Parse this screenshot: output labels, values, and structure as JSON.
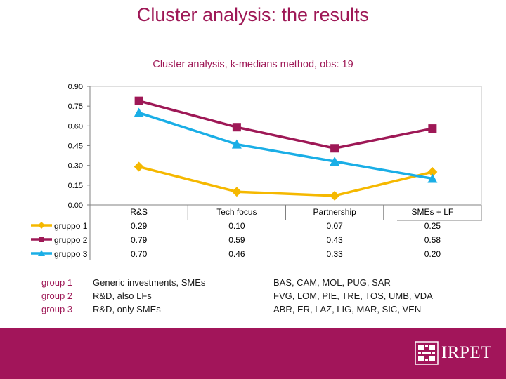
{
  "slide": {
    "title": "Cluster analysis: the results"
  },
  "chart_data": {
    "type": "line",
    "title": "Cluster analysis, k-medians method, obs: 19",
    "categories": [
      "R&S",
      "Tech focus",
      "Partnership",
      "SMEs + LF"
    ],
    "y_ticks": [
      "0.00",
      "0.15",
      "0.30",
      "0.45",
      "0.60",
      "0.75",
      "0.90"
    ],
    "ylim": [
      0,
      0.9
    ],
    "grid": false,
    "series": [
      {
        "name": "gruppo 1",
        "values": [
          0.29,
          0.1,
          0.07,
          0.25
        ],
        "labels": [
          "0.29",
          "0.10",
          "0.07",
          "0.25"
        ],
        "color": "#f5b800",
        "marker": "diamond"
      },
      {
        "name": "gruppo 2",
        "values": [
          0.79,
          0.59,
          0.43,
          0.58
        ],
        "labels": [
          "0.79",
          "0.59",
          "0.43",
          "0.58"
        ],
        "color": "#9e1856",
        "marker": "square"
      },
      {
        "name": "gruppo 3",
        "values": [
          0.7,
          0.46,
          0.33,
          0.2
        ],
        "labels": [
          "0.70",
          "0.46",
          "0.33",
          "0.20"
        ],
        "color": "#1aaee6",
        "marker": "triangle"
      }
    ]
  },
  "legend_groups": {
    "colors": {
      "label": "#9e1856",
      "text": "#1a1a1a"
    },
    "names": [
      "group 1",
      "group 2",
      "group 3"
    ],
    "descriptions": [
      "Generic investments, SMEs",
      "R&D, also LFs",
      "R&D, only SMEs"
    ],
    "regions": [
      "BAS, CAM, MOL, PUG, SAR",
      "FVG, LOM, PIE, TRE, TOS, UMB, VDA",
      "ABR, ER, LAZ, LIG, MAR, SIC, VEN"
    ]
  },
  "footer": {
    "background": "#a2155a",
    "logo_text": "IRPET"
  }
}
